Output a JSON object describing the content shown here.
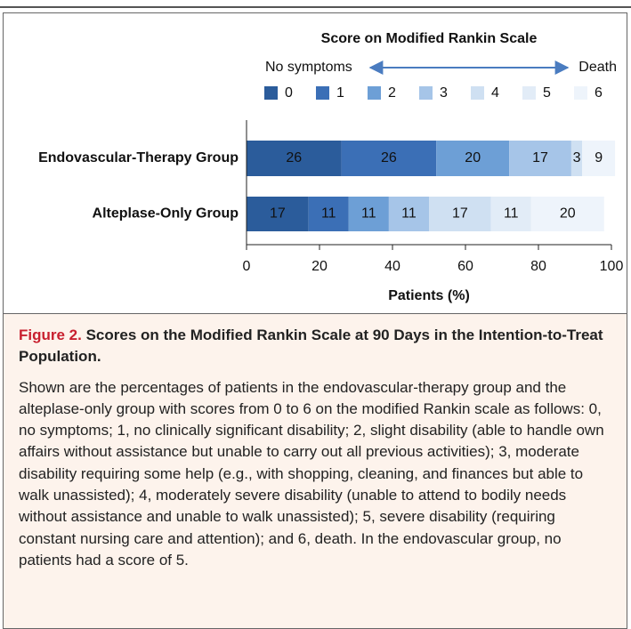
{
  "chart_data": {
    "type": "stacked-bar-horizontal",
    "legend_title": "Score on Modified Rankin Scale",
    "legend_left": "No symptoms",
    "legend_right": "Death",
    "categories": [
      "Endovascular-Therapy Group",
      "Alteplase-Only Group"
    ],
    "series": [
      {
        "name": "0",
        "color": "#2b5c9b",
        "values": [
          26,
          17
        ]
      },
      {
        "name": "1",
        "color": "#3b6fb6",
        "values": [
          26,
          11
        ]
      },
      {
        "name": "2",
        "color": "#6d9fd6",
        "values": [
          20,
          11
        ]
      },
      {
        "name": "3",
        "color": "#a6c5e8",
        "values": [
          17,
          11
        ]
      },
      {
        "name": "4",
        "color": "#cfe0f2",
        "values": [
          3,
          17
        ]
      },
      {
        "name": "5",
        "color": "#e2ecf7",
        "values": [
          0,
          11
        ]
      },
      {
        "name": "6",
        "color": "#eef4fb",
        "values": [
          9,
          20
        ]
      }
    ],
    "xlabel": "Patients (%)",
    "xlim": [
      0,
      100
    ],
    "xticks": [
      0,
      20,
      40,
      60,
      80,
      100
    ]
  },
  "caption": {
    "label": "Figure 2.",
    "title": "Scores on the Modified Rankin Scale at 90 Days in the Intention-to-Treat Population.",
    "body": "Shown are the percentages of patients in the endovascular-therapy group and the alteplase-only group with scores from 0 to 6 on the modified Rankin scale as follows: 0, no symptoms; 1, no clinically significant disability; 2, slight disability (able to handle own affairs without assistance but unable to carry out all previous activities); 3, moderate disability requiring some help (e.g., with shopping, cleaning, and finances but able to walk unassisted); 4, moderately severe disability (unable to attend to bodily needs without assistance and unable to walk unassisted); 5, severe disability (requiring constant nursing care and attention); and 6, death. In the endovascular group, no patients had a score of 5."
  }
}
